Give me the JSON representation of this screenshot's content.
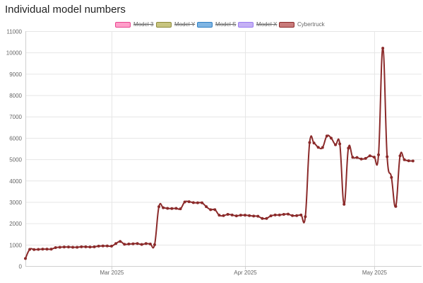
{
  "page": {
    "title": "Individual model numbers"
  },
  "legend": [
    {
      "label": "Model 3",
      "hidden": true,
      "fill": "#ff9ec9",
      "stroke": "#e8458f"
    },
    {
      "label": "Model Y",
      "hidden": true,
      "fill": "#c7c47f",
      "stroke": "#8d8a3b"
    },
    {
      "label": "Model S",
      "hidden": true,
      "fill": "#7fb5e3",
      "stroke": "#2f7fc3"
    },
    {
      "label": "Model X",
      "hidden": true,
      "fill": "#c5b1f5",
      "stroke": "#9a7cf0"
    },
    {
      "label": "Cybertruck",
      "hidden": false,
      "fill": "#c87a7a",
      "stroke": "#8b2a2a"
    }
  ],
  "chart_data": {
    "type": "line",
    "title": "Individual model numbers",
    "xlabel": "",
    "ylabel": "",
    "ylim": [
      0,
      11000
    ],
    "y_ticks": [
      0,
      1000,
      2000,
      3000,
      4000,
      5000,
      6000,
      7000,
      8000,
      9000,
      10000,
      11000
    ],
    "x_ticks": [
      {
        "date": "2025-03-01",
        "label": "Mar 2025"
      },
      {
        "date": "2025-04-01",
        "label": "Apr 2025"
      },
      {
        "date": "2025-05-01",
        "label": "May 2025"
      }
    ],
    "xlim": [
      "2025-02-09",
      "2025-05-12"
    ],
    "grid": true,
    "series": [
      {
        "name": "Cybertruck",
        "color": "#8b2a2a",
        "points": [
          [
            "2025-02-09",
            350
          ],
          [
            "2025-02-10",
            780
          ],
          [
            "2025-02-11",
            770
          ],
          [
            "2025-02-12",
            780
          ],
          [
            "2025-02-13",
            790
          ],
          [
            "2025-02-14",
            790
          ],
          [
            "2025-02-15",
            790
          ],
          [
            "2025-02-16",
            860
          ],
          [
            "2025-02-17",
            880
          ],
          [
            "2025-02-18",
            890
          ],
          [
            "2025-02-19",
            890
          ],
          [
            "2025-02-20",
            880
          ],
          [
            "2025-02-21",
            880
          ],
          [
            "2025-02-22",
            900
          ],
          [
            "2025-02-23",
            900
          ],
          [
            "2025-02-24",
            890
          ],
          [
            "2025-02-25",
            900
          ],
          [
            "2025-02-26",
            930
          ],
          [
            "2025-02-27",
            940
          ],
          [
            "2025-02-28",
            940
          ],
          [
            "2025-03-01",
            930
          ],
          [
            "2025-03-02",
            1050
          ],
          [
            "2025-03-03",
            1150
          ],
          [
            "2025-03-04",
            1020
          ],
          [
            "2025-03-05",
            1030
          ],
          [
            "2025-03-06",
            1040
          ],
          [
            "2025-03-07",
            1050
          ],
          [
            "2025-03-08",
            1010
          ],
          [
            "2025-03-09",
            1050
          ],
          [
            "2025-03-10",
            1030
          ],
          [
            "2025-03-11",
            1000
          ],
          [
            "2025-03-12",
            2780
          ],
          [
            "2025-03-13",
            2730
          ],
          [
            "2025-03-14",
            2700
          ],
          [
            "2025-03-15",
            2690
          ],
          [
            "2025-03-16",
            2700
          ],
          [
            "2025-03-17",
            2680
          ],
          [
            "2025-03-18",
            3000
          ],
          [
            "2025-03-19",
            3010
          ],
          [
            "2025-03-20",
            2970
          ],
          [
            "2025-03-21",
            2960
          ],
          [
            "2025-03-22",
            2960
          ],
          [
            "2025-03-23",
            2780
          ],
          [
            "2025-03-24",
            2640
          ],
          [
            "2025-03-25",
            2640
          ],
          [
            "2025-03-26",
            2380
          ],
          [
            "2025-03-27",
            2360
          ],
          [
            "2025-03-28",
            2420
          ],
          [
            "2025-03-29",
            2390
          ],
          [
            "2025-03-30",
            2350
          ],
          [
            "2025-03-31",
            2380
          ],
          [
            "2025-04-01",
            2380
          ],
          [
            "2025-04-02",
            2360
          ],
          [
            "2025-04-03",
            2340
          ],
          [
            "2025-04-04",
            2330
          ],
          [
            "2025-04-05",
            2230
          ],
          [
            "2025-04-06",
            2230
          ],
          [
            "2025-04-07",
            2350
          ],
          [
            "2025-04-08",
            2390
          ],
          [
            "2025-04-09",
            2390
          ],
          [
            "2025-04-10",
            2420
          ],
          [
            "2025-04-11",
            2430
          ],
          [
            "2025-04-12",
            2360
          ],
          [
            "2025-04-13",
            2360
          ],
          [
            "2025-04-14",
            2390
          ],
          [
            "2025-04-15",
            2310
          ],
          [
            "2025-04-16",
            5780
          ],
          [
            "2025-04-17",
            5760
          ],
          [
            "2025-04-18",
            5560
          ],
          [
            "2025-04-19",
            5550
          ],
          [
            "2025-04-20",
            6090
          ],
          [
            "2025-04-21",
            5990
          ],
          [
            "2025-04-22",
            5680
          ],
          [
            "2025-04-23",
            5720
          ],
          [
            "2025-04-24",
            2890
          ],
          [
            "2025-04-25",
            5520
          ],
          [
            "2025-04-26",
            5090
          ],
          [
            "2025-04-27",
            5080
          ],
          [
            "2025-04-28",
            5010
          ],
          [
            "2025-04-29",
            5040
          ],
          [
            "2025-04-30",
            5160
          ],
          [
            "2025-05-01",
            5100
          ],
          [
            "2025-05-02",
            5210
          ],
          [
            "2025-05-03",
            10200
          ],
          [
            "2025-05-04",
            5120
          ],
          [
            "2025-05-05",
            4150
          ],
          [
            "2025-05-06",
            2790
          ],
          [
            "2025-05-07",
            5160
          ],
          [
            "2025-05-08",
            4980
          ],
          [
            "2025-05-09",
            4930
          ],
          [
            "2025-05-10",
            4920
          ]
        ]
      }
    ]
  }
}
